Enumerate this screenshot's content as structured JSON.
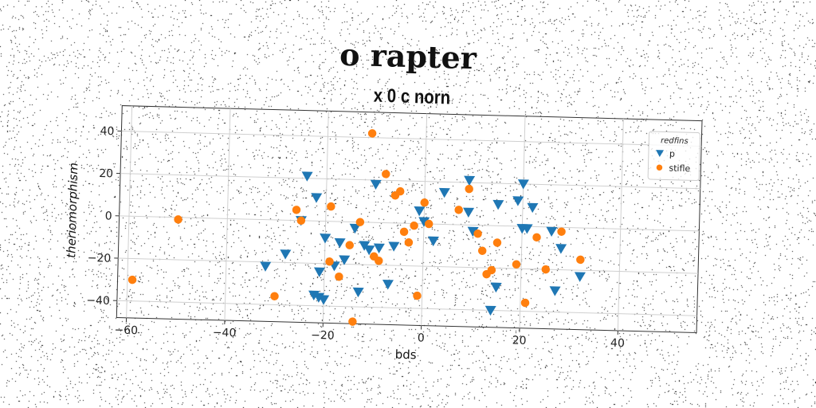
{
  "suptitle": "o rapter",
  "chart_data": {
    "type": "scatter",
    "title": "x 0 c norn",
    "xlabel": "bds",
    "ylabel": "theriomorphism",
    "xlim": [
      -62,
      56
    ],
    "ylim": [
      -48,
      52
    ],
    "xticks": [
      -60,
      -40,
      -20,
      0,
      20,
      40
    ],
    "yticks": [
      -40,
      -20,
      0,
      20,
      40
    ],
    "grid": true,
    "legend": {
      "title": "redfins",
      "placement": "top-right"
    },
    "series": [
      {
        "name": "p",
        "color": "#1f77b4",
        "marker": "triangle-down",
        "x": [
          -24,
          -22,
          -25,
          -20,
          -17,
          -16,
          -18,
          -21,
          -22,
          -21,
          -20,
          -28,
          -32,
          -14,
          -12,
          -13,
          -11,
          -9,
          -7,
          -6,
          -10,
          -1,
          0,
          2,
          4,
          9,
          9,
          10,
          15,
          19,
          20,
          20,
          21,
          22,
          26,
          27,
          28,
          32,
          15,
          14,
          15
        ],
        "y": [
          21,
          11,
          0,
          -8,
          -10,
          -18,
          -21,
          -24,
          -35,
          -36,
          -37,
          -16,
          -22,
          -3,
          -11,
          -33,
          -13,
          -12,
          -29,
          -11,
          18,
          6,
          1,
          -8,
          15,
          21,
          6,
          -3,
          10,
          12,
          20,
          -1,
          -1,
          9,
          -2,
          -30,
          -10,
          -23,
          -29,
          -40,
          -29
        ]
      },
      {
        "name": "stifle",
        "color": "#ff7f0e",
        "marker": "circle",
        "x": [
          -59,
          -50,
          -30,
          -26,
          -25,
          -19,
          -19,
          -17,
          -15,
          -14,
          -11,
          -10,
          -9,
          -8,
          -6,
          -5,
          -4,
          -3,
          -2,
          -1,
          0,
          1,
          7,
          9,
          11,
          12,
          13,
          14,
          15,
          19,
          21,
          23,
          25,
          28,
          32,
          -13
        ],
        "y": [
          -30,
          -1,
          -36,
          5,
          0,
          7,
          -19,
          -26,
          -11,
          -47,
          42,
          -16,
          -18,
          23,
          13,
          15,
          -4,
          -9,
          -1,
          -34,
          10,
          0,
          7,
          17,
          -4,
          -12,
          -23,
          -21,
          -8,
          -18,
          -36,
          -5,
          -20,
          -2,
          -15,
          0
        ]
      }
    ]
  }
}
